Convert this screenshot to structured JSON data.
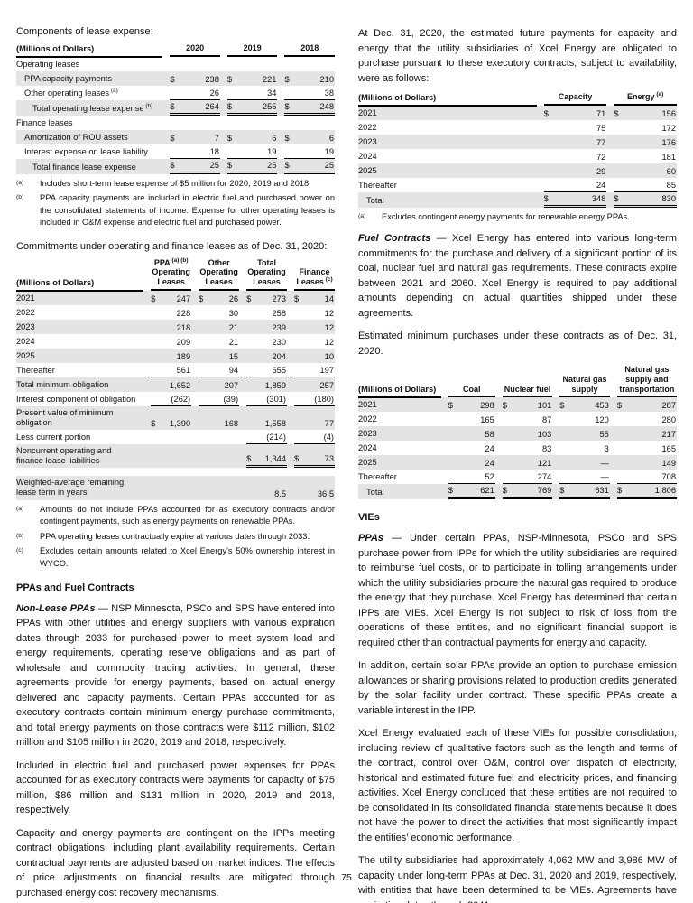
{
  "page": {
    "number": "75"
  },
  "left": {
    "intro": "Components of lease expense:",
    "lease_table": {
      "label_header": "(Millions of Dollars)",
      "col_widths": [
        "46%",
        "18%",
        "18%",
        "18%"
      ],
      "columns": [
        {
          "lines": [
            "2020"
          ]
        },
        {
          "lines": [
            "2019"
          ]
        },
        {
          "lines": [
            "2018"
          ]
        }
      ],
      "rows": [
        {
          "label": "Operating leases",
          "section": true
        },
        {
          "label": "PPA capacity payments",
          "indent": 1,
          "shaded": true,
          "cells": [
            {
              "d": "$",
              "v": "238"
            },
            {
              "d": "$",
              "v": "221"
            },
            {
              "d": "$",
              "v": "210"
            }
          ]
        },
        {
          "label": "Other operating leases",
          "sup": "(a)",
          "indent": 1,
          "cells": [
            {
              "v": "26",
              "u": "s"
            },
            {
              "v": "34",
              "u": "s"
            },
            {
              "v": "38",
              "u": "s"
            }
          ]
        },
        {
          "label": "Total operating lease expense",
          "sup": "(b)",
          "indent": 2,
          "shaded": true,
          "cells": [
            {
              "d": "$",
              "v": "264",
              "u": "d"
            },
            {
              "d": "$",
              "v": "255",
              "u": "d"
            },
            {
              "d": "$",
              "v": "248",
              "u": "d"
            }
          ]
        },
        {
          "label": "Finance leases",
          "section": true
        },
        {
          "label": "Amortization of ROU assets",
          "indent": 1,
          "shaded": true,
          "cells": [
            {
              "d": "$",
              "v": "7"
            },
            {
              "d": "$",
              "v": "6"
            },
            {
              "d": "$",
              "v": "6"
            }
          ]
        },
        {
          "label": "Interest expense on lease liability",
          "indent": 1,
          "cells": [
            {
              "v": "18",
              "u": "s"
            },
            {
              "v": "19",
              "u": "s"
            },
            {
              "v": "19",
              "u": "s"
            }
          ]
        },
        {
          "label": "Total finance lease expense",
          "indent": 2,
          "shaded": true,
          "cells": [
            {
              "d": "$",
              "v": "25",
              "u": "d"
            },
            {
              "d": "$",
              "v": "25",
              "u": "d"
            },
            {
              "d": "$",
              "v": "25",
              "u": "d"
            }
          ]
        }
      ],
      "footnotes": [
        {
          "marker": "(a)",
          "text": "Includes short-term lease expense of $5 million for 2020, 2019 and 2018."
        },
        {
          "marker": "(b)",
          "text": "PPA capacity payments are included in electric fuel and purchased power on the consolidated statements of income. Expense for other operating leases is included in O&M expense and electric fuel and purchased power."
        }
      ]
    },
    "commitments_intro": "Commitments under operating and finance leases as of Dec. 31, 2020:",
    "commitments_table": {
      "label_header": "(Millions of Dollars)",
      "col_widths": [
        "40%",
        "15%",
        "15%",
        "15%",
        "15%"
      ],
      "columns": [
        {
          "lines": [
            "PPA",
            "Operating",
            "Leases"
          ],
          "sup": "(a) (b)",
          "sup_line": 0
        },
        {
          "lines": [
            "Other",
            "Operating",
            "Leases"
          ]
        },
        {
          "lines": [
            "Total",
            "Operating",
            "Leases"
          ]
        },
        {
          "lines": [
            "Finance",
            "Leases"
          ],
          "sup": "(c)",
          "sup_line": 1
        }
      ],
      "rows": [
        {
          "label": "2021",
          "shaded": true,
          "cells": [
            {
              "d": "$",
              "v": "247"
            },
            {
              "d": "$",
              "v": "26"
            },
            {
              "d": "$",
              "v": "273"
            },
            {
              "d": "$",
              "v": "14"
            }
          ]
        },
        {
          "label": "2022",
          "cells": [
            {
              "v": "228"
            },
            {
              "v": "30"
            },
            {
              "v": "258"
            },
            {
              "v": "12"
            }
          ]
        },
        {
          "label": "2023",
          "shaded": true,
          "cells": [
            {
              "v": "218"
            },
            {
              "v": "21"
            },
            {
              "v": "239"
            },
            {
              "v": "12"
            }
          ]
        },
        {
          "label": "2024",
          "cells": [
            {
              "v": "209"
            },
            {
              "v": "21"
            },
            {
              "v": "230"
            },
            {
              "v": "12"
            }
          ]
        },
        {
          "label": "2025",
          "shaded": true,
          "cells": [
            {
              "v": "189"
            },
            {
              "v": "15"
            },
            {
              "v": "204"
            },
            {
              "v": "10"
            }
          ]
        },
        {
          "label": "Thereafter",
          "cells": [
            {
              "v": "561",
              "u": "s"
            },
            {
              "v": "94",
              "u": "s"
            },
            {
              "v": "655",
              "u": "s"
            },
            {
              "v": "197",
              "u": "s"
            }
          ]
        },
        {
          "label": "Total minimum obligation",
          "shaded": true,
          "cells": [
            {
              "v": "1,652"
            },
            {
              "v": "207"
            },
            {
              "v": "1,859"
            },
            {
              "v": "257"
            }
          ]
        },
        {
          "label": "Interest component of obligation",
          "cells": [
            {
              "v": "(262)",
              "u": "s"
            },
            {
              "v": "(39)",
              "u": "s"
            },
            {
              "v": "(301)",
              "u": "s"
            },
            {
              "v": "(180)",
              "u": "s"
            }
          ]
        },
        {
          "label_lines": [
            "Present value of minimum",
            "obligation"
          ],
          "shaded": true,
          "cells": [
            {
              "d": "$",
              "v": "1,390"
            },
            {
              "v": "168"
            },
            {
              "v": "1,558"
            },
            {
              "v": "77"
            }
          ]
        },
        {
          "label": "Less current portion",
          "cells": [
            null,
            null,
            {
              "v": "(214)",
              "u": "s"
            },
            {
              "v": "(4)",
              "u": "s"
            }
          ]
        },
        {
          "label_lines": [
            "Noncurrent operating and",
            "finance lease liabilities"
          ],
          "shaded": true,
          "cells": [
            null,
            null,
            {
              "d": "$",
              "v": "1,344",
              "u": "d"
            },
            {
              "d": "$",
              "v": "73",
              "u": "d"
            }
          ]
        },
        {
          "spacer": true
        },
        {
          "label_lines": [
            "Weighted-average remaining",
            "lease term in years"
          ],
          "shaded": true,
          "cells": [
            null,
            null,
            {
              "v": "8.5"
            },
            {
              "v": "36.5"
            }
          ]
        }
      ],
      "footnotes": [
        {
          "marker": "(a)",
          "text": "Amounts do not include PPAs accounted for as executory contracts and/or contingent payments, such as energy payments on renewable PPAs."
        },
        {
          "marker": "(b)",
          "text": "PPA operating leases contractually expire at various dates through 2033."
        },
        {
          "marker": "(c)",
          "text": "Excludes certain amounts related to Xcel Energy's 50% ownership interest in WYCO."
        }
      ]
    },
    "section_heading": "PPAs and Fuel Contracts",
    "p1_lead": "Non-Lease PPAs",
    "p1_rest": " — NSP Minnesota, PSCo and SPS have entered into PPAs with other utilities and energy suppliers with various expiration dates through 2033 for purchased power to meet system load and energy requirements, operating reserve obligations and as part of wholesale and commodity trading activities. In general, these agreements provide for energy payments, based on actual energy delivered and capacity payments. Certain PPAs accounted for as executory contracts contain minimum energy purchase commitments, and total energy payments on those contracts were $112 million, $102 million and $105 million in 2020, 2019 and 2018, respectively.",
    "p2": "Included in electric fuel and purchased power expenses for PPAs accounted for as executory contracts were payments for capacity of $75 million, $86 million and $131 million in 2020, 2019 and 2018, respectively.",
    "p3": "Capacity and energy payments are contingent on the IPPs meeting contract obligations, including plant availability requirements. Certain contractual payments are adjusted based on market indices. The effects of price adjustments on financial results are mitigated through purchased energy cost recovery mechanisms."
  },
  "right": {
    "p1": "At Dec. 31, 2020, the estimated future payments for capacity and energy that the utility subsidiaries of Xcel Energy are obligated to purchase pursuant to these executory contracts, subject to availability, were as follows:",
    "capacity_energy_table": {
      "label_header": "(Millions of Dollars)",
      "col_widths": [
        "56%",
        "22%",
        "22%"
      ],
      "columns": [
        {
          "lines": [
            "Capacity"
          ]
        },
        {
          "lines": [
            "Energy"
          ],
          "sup": "(a)",
          "sup_line": 0
        }
      ],
      "rows": [
        {
          "label": "2021",
          "shaded": true,
          "cells": [
            {
              "d": "$",
              "v": "71"
            },
            {
              "d": "$",
              "v": "156"
            }
          ]
        },
        {
          "label": "2022",
          "cells": [
            {
              "v": "75"
            },
            {
              "v": "172"
            }
          ]
        },
        {
          "label": "2023",
          "shaded": true,
          "cells": [
            {
              "v": "77"
            },
            {
              "v": "176"
            }
          ]
        },
        {
          "label": "2024",
          "cells": [
            {
              "v": "72"
            },
            {
              "v": "181"
            }
          ]
        },
        {
          "label": "2025",
          "shaded": true,
          "cells": [
            {
              "v": "29"
            },
            {
              "v": "60"
            }
          ]
        },
        {
          "label": "Thereafter",
          "cells": [
            {
              "v": "24",
              "u": "s"
            },
            {
              "v": "85",
              "u": "s"
            }
          ]
        },
        {
          "label": "Total",
          "indent": 1,
          "shaded": true,
          "cells": [
            {
              "d": "$",
              "v": "348",
              "u": "d"
            },
            {
              "d": "$",
              "v": "830",
              "u": "d"
            }
          ]
        }
      ],
      "footnotes": [
        {
          "marker": "(a)",
          "text": "Excludes contingent energy payments for renewable energy PPAs."
        }
      ]
    },
    "p2_lead": "Fuel Contracts",
    "p2_rest": " — Xcel Energy has entered into various long-term commitments for the purchase and delivery of a significant portion of its coal, nuclear fuel and natural gas requirements. These contracts expire between 2021 and 2060. Xcel Energy is required to pay additional amounts depending on actual quantities shipped under these agreements.",
    "p3": "Estimated minimum purchases under these contracts as of Dec. 31, 2020:",
    "purchases_table": {
      "label_header": "(Millions of Dollars)",
      "col_widths": [
        "26%",
        "17%",
        "18%",
        "18%",
        "21%"
      ],
      "columns": [
        {
          "lines": [
            "Coal"
          ]
        },
        {
          "lines": [
            "Nuclear fuel"
          ]
        },
        {
          "lines": [
            "Natural gas",
            "supply"
          ]
        },
        {
          "lines": [
            "Natural gas",
            "supply and",
            "transportation"
          ]
        }
      ],
      "rows": [
        {
          "label": "2021",
          "shaded": true,
          "cells": [
            {
              "d": "$",
              "v": "298"
            },
            {
              "d": "$",
              "v": "101"
            },
            {
              "d": "$",
              "v": "453"
            },
            {
              "d": "$",
              "v": "287"
            }
          ]
        },
        {
          "label": "2022",
          "cells": [
            {
              "v": "165"
            },
            {
              "v": "87"
            },
            {
              "v": "120"
            },
            {
              "v": "280"
            }
          ]
        },
        {
          "label": "2023",
          "shaded": true,
          "cells": [
            {
              "v": "58"
            },
            {
              "v": "103"
            },
            {
              "v": "55"
            },
            {
              "v": "217"
            }
          ]
        },
        {
          "label": "2024",
          "cells": [
            {
              "v": "24"
            },
            {
              "v": "83"
            },
            {
              "v": "3"
            },
            {
              "v": "165"
            }
          ]
        },
        {
          "label": "2025",
          "shaded": true,
          "cells": [
            {
              "v": "24"
            },
            {
              "v": "121"
            },
            {
              "v": "—"
            },
            {
              "v": "149"
            }
          ]
        },
        {
          "label": "Thereafter",
          "cells": [
            {
              "v": "52",
              "u": "s"
            },
            {
              "v": "274",
              "u": "s"
            },
            {
              "v": "—",
              "u": "s"
            },
            {
              "v": "708",
              "u": "s"
            }
          ]
        },
        {
          "label": "Total",
          "indent": 1,
          "shaded": true,
          "cells": [
            {
              "d": "$",
              "v": "621",
              "u": "d"
            },
            {
              "d": "$",
              "v": "769",
              "u": "d"
            },
            {
              "d": "$",
              "v": "631",
              "u": "d"
            },
            {
              "d": "$",
              "v": "1,806",
              "u": "d"
            }
          ]
        }
      ],
      "footnotes": []
    },
    "vies_heading": "VIEs",
    "p4_lead": "PPAs",
    "p4_rest": " — Under certain PPAs, NSP-Minnesota, PSCo and SPS purchase power from IPPs for which the utility subsidiaries are required to reimburse fuel costs, or to participate in tolling arrangements under which the utility subsidiaries procure the natural gas required to produce the energy that they purchase. Xcel Energy has determined that certain IPPs are VIEs. Xcel Energy is not subject to risk of loss from the operations of these entities, and no significant financial support is required other than contractual payments for energy and capacity.",
    "p5": "In addition, certain solar PPAs provide an option to purchase emission allowances or sharing provisions related to production credits generated by the solar facility under contract. These specific PPAs create a variable interest in the IPP.",
    "p6": "Xcel Energy evaluated each of these VIEs for possible consolidation, including review of qualitative factors such as the length and terms of the contract, control over O&M, control over dispatch of electricity, historical and estimated future fuel and electricity prices, and financing activities. Xcel Energy concluded that these entities are not required to be consolidated in its consolidated financial statements because it does not have the power to direct the activities that most significantly impact the entities’ economic performance.",
    "p7": "The utility subsidiaries had approximately 4,062 MW and 3,986 MW of capacity under long-term PPAs at Dec. 31, 2020 and 2019, respectively, with entities that have been determined to be VIEs. Agreements have expiration dates through 2041."
  }
}
